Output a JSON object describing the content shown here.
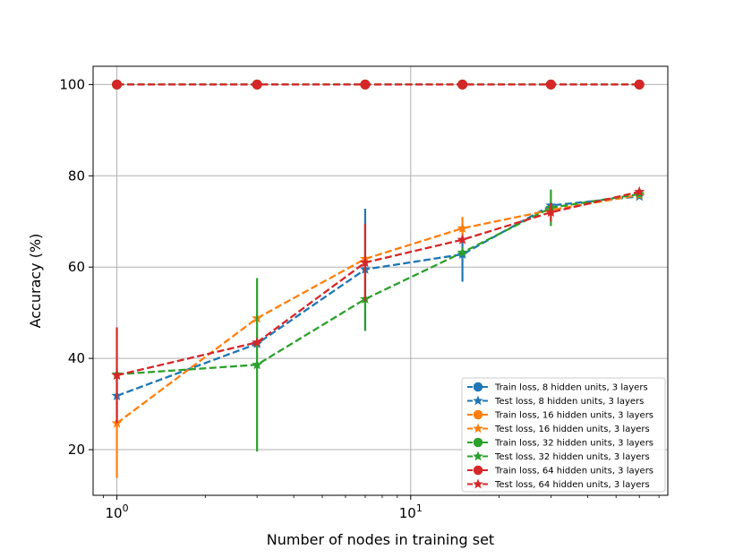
{
  "chart_data": {
    "type": "line",
    "title": "",
    "xlabel": "Number of nodes in training set",
    "ylabel": "Accuracy (%)",
    "xscale": "log",
    "xlim": [
      0.83,
      75
    ],
    "ylim": [
      10,
      104
    ],
    "x_ticks": [
      {
        "value": 1,
        "base": "10",
        "exp": "0"
      },
      {
        "value": 10,
        "base": "10",
        "exp": "1"
      }
    ],
    "y_ticks": [
      20,
      40,
      60,
      80,
      100
    ],
    "grid": true,
    "legend_position": "lower-right",
    "x": [
      1,
      3,
      7,
      15,
      30,
      60
    ],
    "series": [
      {
        "name": "Train loss, 8 hidden units, 3 layers",
        "color": "#1f77b4",
        "marker": "circle",
        "values": [
          100,
          100,
          100,
          100,
          100,
          100
        ],
        "errors": [
          0,
          0,
          0,
          0,
          0,
          0
        ]
      },
      {
        "name": "Test loss, 8 hidden units, 3 layers",
        "color": "#1f77b4",
        "marker": "star",
        "values": [
          31.8,
          43.2,
          59.5,
          62.8,
          73.5,
          75.5
        ],
        "errors": [
          0,
          0,
          13.3,
          6,
          0,
          0
        ]
      },
      {
        "name": "Train loss, 16 hidden units, 3 layers",
        "color": "#ff7f0e",
        "marker": "circle",
        "values": [
          100,
          100,
          100,
          100,
          100,
          100
        ],
        "errors": [
          0,
          0,
          0,
          0,
          0,
          0
        ]
      },
      {
        "name": "Test loss, 16 hidden units, 3 layers",
        "color": "#ff7f0e",
        "marker": "star",
        "values": [
          25.8,
          48.8,
          61.8,
          68.5,
          72.5,
          75.8
        ],
        "errors": [
          12,
          0,
          0,
          2.5,
          0,
          0
        ]
      },
      {
        "name": "Train loss, 32 hidden units, 3 layers",
        "color": "#2ca02c",
        "marker": "circle",
        "values": [
          100,
          100,
          100,
          100,
          100,
          100
        ],
        "errors": [
          0,
          0,
          0,
          0,
          0,
          0
        ]
      },
      {
        "name": "Test loss, 32 hidden units, 3 layers",
        "color": "#2ca02c",
        "marker": "star",
        "values": [
          36.5,
          38.6,
          53,
          63.2,
          73,
          76
        ],
        "errors": [
          0,
          19,
          7,
          0,
          4,
          0
        ]
      },
      {
        "name": "Train loss, 64 hidden units, 3 layers",
        "color": "#d62728",
        "marker": "circle",
        "values": [
          100,
          100,
          100,
          100,
          100,
          100
        ],
        "errors": [
          0,
          0,
          0,
          0,
          0,
          0
        ]
      },
      {
        "name": "Test loss, 64 hidden units, 3 layers",
        "color": "#d62728",
        "marker": "star",
        "values": [
          36.3,
          43.5,
          61,
          66,
          72,
          76.5
        ],
        "errors": [
          10.5,
          0,
          8.5,
          0,
          2,
          0
        ]
      }
    ]
  }
}
